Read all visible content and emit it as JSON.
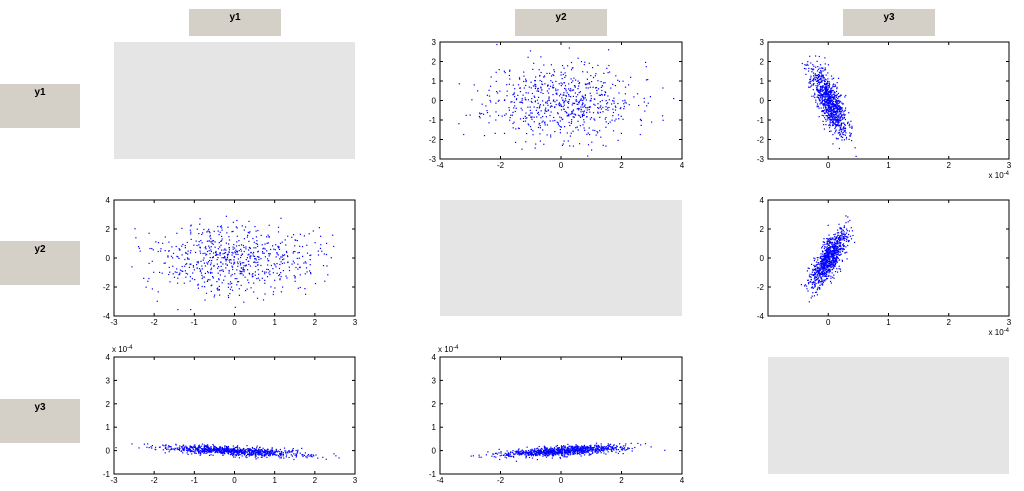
{
  "col_headers": [
    "y1",
    "y2",
    "y3"
  ],
  "row_headers": [
    "y1",
    "y2",
    "y3"
  ],
  "chart_data": [
    {
      "id": "r1c2",
      "type": "scatter",
      "row": 1,
      "col": 2,
      "title": "",
      "xlabel": "",
      "ylabel": "",
      "xlim": [
        -4,
        4
      ],
      "ylim": [
        -3,
        3
      ],
      "xticks": [
        -4,
        -2,
        0,
        2,
        4
      ],
      "yticks": [
        -3,
        -2,
        -1,
        0,
        1,
        2,
        3
      ],
      "x_exponent": "",
      "y_exponent": "",
      "n_points": 700,
      "color": "#0000ff",
      "dist": {
        "type": "box",
        "sx": 1.2,
        "sy": 1.0,
        "mx": 0,
        "my": 0,
        "seed": 11
      }
    },
    {
      "id": "r1c3",
      "type": "scatter",
      "row": 1,
      "col": 3,
      "title": "",
      "xlabel": "",
      "ylabel": "",
      "xlim": [
        -0.0001,
        0.0003
      ],
      "ylim": [
        -3,
        3
      ],
      "xticks": [
        0,
        0.0001,
        0.0002,
        0.0003
      ],
      "xtick_labels": [
        "0",
        "1",
        "2",
        "3"
      ],
      "yticks": [
        -3,
        -2,
        -1,
        0,
        1,
        2,
        3
      ],
      "x_exponent": "x 10-4",
      "y_exponent": "",
      "n_points": 900,
      "color": "#0000ff",
      "dist": {
        "type": "corr",
        "sx": 1.5e-05,
        "sy": 0.9,
        "rho": -0.75,
        "mx": 0,
        "my": 0,
        "seed": 23
      }
    },
    {
      "id": "r2c1",
      "type": "scatter",
      "row": 2,
      "col": 1,
      "title": "",
      "xlabel": "",
      "ylabel": "",
      "xlim": [
        -3,
        3
      ],
      "ylim": [
        -4,
        4
      ],
      "xticks": [
        -3,
        -2,
        -1,
        0,
        1,
        2,
        3
      ],
      "yticks": [
        -4,
        -2,
        0,
        2,
        4
      ],
      "x_exponent": "",
      "y_exponent": "",
      "n_points": 700,
      "color": "#0000ff",
      "dist": {
        "type": "box",
        "sx": 1.0,
        "sy": 1.2,
        "mx": 0,
        "my": 0,
        "seed": 37
      }
    },
    {
      "id": "r2c3",
      "type": "scatter",
      "row": 2,
      "col": 3,
      "title": "",
      "xlabel": "",
      "ylabel": "",
      "xlim": [
        -0.0001,
        0.0003
      ],
      "ylim": [
        -4,
        4
      ],
      "xticks": [
        0,
        0.0001,
        0.0002,
        0.0003
      ],
      "xtick_labels": [
        "0",
        "1",
        "2",
        "3"
      ],
      "yticks": [
        -4,
        -2,
        0,
        2,
        4
      ],
      "x_exponent": "x 10-4",
      "y_exponent": "",
      "n_points": 900,
      "color": "#0000ff",
      "dist": {
        "type": "corr",
        "sx": 1.5e-05,
        "sy": 1.0,
        "rho": 0.75,
        "mx": 0,
        "my": 0,
        "seed": 41
      }
    },
    {
      "id": "r3c1",
      "type": "scatter",
      "row": 3,
      "col": 1,
      "title": "",
      "xlabel": "",
      "ylabel": "",
      "xlim": [
        -3,
        3
      ],
      "ylim": [
        -0.0001,
        0.0004
      ],
      "xticks": [
        -3,
        -2,
        -1,
        0,
        1,
        2,
        3
      ],
      "yticks": [
        -0.0001,
        0,
        0.0001,
        0.0002,
        0.0003,
        0.0004
      ],
      "ytick_labels": [
        "-1",
        "0",
        "1",
        "2",
        "3",
        "4"
      ],
      "x_exponent": "",
      "y_exponent": "x 10-4",
      "n_points": 900,
      "color": "#0000ff",
      "dist": {
        "type": "corr",
        "sx": 0.9,
        "sy": 1.2e-05,
        "rho": -0.6,
        "mx": 0,
        "my": 0,
        "seed": 53
      }
    },
    {
      "id": "r3c2",
      "type": "scatter",
      "row": 3,
      "col": 2,
      "title": "",
      "xlabel": "",
      "ylabel": "",
      "xlim": [
        -4,
        4
      ],
      "ylim": [
        -0.0001,
        0.0004
      ],
      "xticks": [
        -4,
        -2,
        0,
        2,
        4
      ],
      "yticks": [
        -0.0001,
        0,
        0.0001,
        0.0002,
        0.0003,
        0.0004
      ],
      "ytick_labels": [
        "-1",
        "0",
        "1",
        "2",
        "3",
        "4"
      ],
      "x_exponent": "",
      "y_exponent": "x 10-4",
      "n_points": 900,
      "color": "#0000ff",
      "dist": {
        "type": "corr",
        "sx": 1.0,
        "sy": 1.2e-05,
        "rho": 0.6,
        "mx": 0,
        "my": 0,
        "seed": 67
      }
    }
  ],
  "empty_cells": [
    {
      "row": 1,
      "col": 1,
      "color": "#e5e5e5"
    },
    {
      "row": 2,
      "col": 2,
      "color": "#e5e5e5"
    },
    {
      "row": 3,
      "col": 3,
      "color": "#e5e5e5"
    }
  ]
}
